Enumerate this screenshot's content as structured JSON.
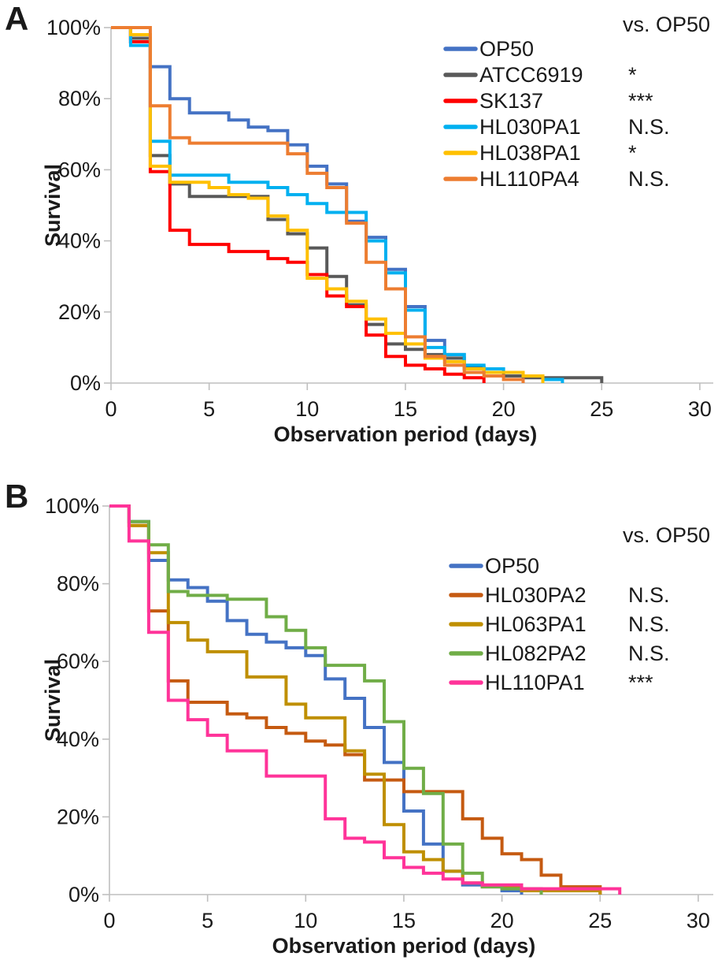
{
  "chart_data": [
    {
      "type": "line",
      "subtype": "step-survival",
      "panel_label": "A",
      "xlabel": "Observation period (days)",
      "ylabel": "Survival",
      "xlim": [
        0,
        30
      ],
      "ylim": [
        0,
        100
      ],
      "x_ticks": [
        0,
        5,
        10,
        15,
        20,
        25,
        30
      ],
      "y_ticks": [
        0,
        20,
        40,
        60,
        80,
        100
      ],
      "y_tick_labels": [
        "0%",
        "20%",
        "40%",
        "60%",
        "80%",
        "100%"
      ],
      "units": "percent",
      "grid": false,
      "legend_position": "top-right-inside",
      "legend_header": "vs. OP50",
      "series": [
        {
          "name": "OP50",
          "color": "#4472C4",
          "significance_vs_op50": "",
          "points_day_percent": [
            [
              0,
              100
            ],
            [
              1,
              96
            ],
            [
              2,
              89
            ],
            [
              3,
              80
            ],
            [
              4,
              76
            ],
            [
              6,
              74
            ],
            [
              7,
              72
            ],
            [
              8,
              71
            ],
            [
              9,
              67
            ],
            [
              10,
              61
            ],
            [
              11,
              56
            ],
            [
              12,
              45.5
            ],
            [
              13,
              41
            ],
            [
              14,
              32
            ],
            [
              15,
              21.5
            ],
            [
              16,
              12
            ],
            [
              17,
              8
            ],
            [
              18,
              4
            ],
            [
              19,
              3
            ],
            [
              21,
              2
            ],
            [
              22,
              0
            ]
          ]
        },
        {
          "name": "ATCC6919",
          "color": "#595959",
          "significance_vs_op50": "*",
          "points_day_percent": [
            [
              0,
              100
            ],
            [
              1,
              97
            ],
            [
              2,
              64
            ],
            [
              3,
              56
            ],
            [
              4,
              52.5
            ],
            [
              8,
              46
            ],
            [
              9,
              42
            ],
            [
              10,
              38
            ],
            [
              11,
              30
            ],
            [
              12,
              22
            ],
            [
              13,
              16.5
            ],
            [
              14,
              11
            ],
            [
              15,
              9.5
            ],
            [
              16,
              8
            ],
            [
              17,
              7
            ],
            [
              18,
              4.5
            ],
            [
              19,
              3
            ],
            [
              20,
              2
            ],
            [
              21,
              1.5
            ],
            [
              25,
              0
            ]
          ]
        },
        {
          "name": "SK137",
          "color": "#FF0000",
          "significance_vs_op50": "***",
          "points_day_percent": [
            [
              0,
              100
            ],
            [
              1,
              96
            ],
            [
              2,
              59.5
            ],
            [
              3,
              43
            ],
            [
              4,
              39
            ],
            [
              6,
              37
            ],
            [
              8,
              35
            ],
            [
              9,
              34
            ],
            [
              10,
              30.5
            ],
            [
              11,
              24.5
            ],
            [
              12,
              21.5
            ],
            [
              13,
              13.5
            ],
            [
              14,
              7.5
            ],
            [
              15,
              5
            ],
            [
              16,
              4
            ],
            [
              17,
              2.5
            ],
            [
              18,
              1.5
            ],
            [
              19,
              0
            ]
          ]
        },
        {
          "name": "HL030PA1",
          "color": "#00B0F0",
          "significance_vs_op50": "N.S.",
          "points_day_percent": [
            [
              0,
              100
            ],
            [
              1,
              95
            ],
            [
              2,
              68
            ],
            [
              3,
              58.5
            ],
            [
              6,
              56.5
            ],
            [
              8,
              55
            ],
            [
              9,
              53
            ],
            [
              10,
              50.5
            ],
            [
              11,
              48
            ],
            [
              13,
              40
            ],
            [
              14,
              31
            ],
            [
              15,
              20.5
            ],
            [
              16,
              10
            ],
            [
              17,
              8
            ],
            [
              18,
              5
            ],
            [
              19,
              4
            ],
            [
              20,
              3
            ],
            [
              21,
              2
            ],
            [
              22,
              1
            ],
            [
              23,
              0
            ]
          ]
        },
        {
          "name": "HL038PA1",
          "color": "#FFC000",
          "significance_vs_op50": "*",
          "points_day_percent": [
            [
              0,
              100
            ],
            [
              1,
              98
            ],
            [
              2,
              61
            ],
            [
              3,
              56.5
            ],
            [
              5,
              55
            ],
            [
              6,
              53
            ],
            [
              7,
              52
            ],
            [
              8,
              47
            ],
            [
              9,
              43
            ],
            [
              10,
              29.5
            ],
            [
              11,
              26.5
            ],
            [
              12,
              23
            ],
            [
              13,
              18
            ],
            [
              14,
              14
            ],
            [
              15,
              11
            ],
            [
              16,
              7
            ],
            [
              17,
              6
            ],
            [
              18,
              4
            ],
            [
              19,
              3
            ],
            [
              21,
              2
            ],
            [
              22,
              0
            ]
          ]
        },
        {
          "name": "HL110PA4",
          "color": "#ED7D31",
          "significance_vs_op50": "N.S.",
          "points_day_percent": [
            [
              0,
              100
            ],
            [
              2,
              78
            ],
            [
              3,
              69
            ],
            [
              4,
              67.5
            ],
            [
              9,
              64.5
            ],
            [
              10,
              59
            ],
            [
              11,
              55
            ],
            [
              12,
              45
            ],
            [
              13,
              34
            ],
            [
              14,
              26.5
            ],
            [
              15,
              13
            ],
            [
              16,
              7.5
            ],
            [
              17,
              5
            ],
            [
              18,
              3
            ],
            [
              19,
              2
            ],
            [
              20,
              1
            ],
            [
              21,
              0
            ]
          ]
        }
      ]
    },
    {
      "type": "line",
      "subtype": "step-survival",
      "panel_label": "B",
      "xlabel": "Observation period (days)",
      "ylabel": "Survival",
      "xlim": [
        0,
        30
      ],
      "ylim": [
        0,
        100
      ],
      "x_ticks": [
        0,
        5,
        10,
        15,
        20,
        25,
        30
      ],
      "y_ticks": [
        0,
        20,
        40,
        60,
        80,
        100
      ],
      "y_tick_labels": [
        "0%",
        "20%",
        "40%",
        "60%",
        "80%",
        "100%"
      ],
      "units": "percent",
      "grid": false,
      "legend_position": "top-right-inside",
      "legend_header": "vs. OP50",
      "series": [
        {
          "name": "OP50",
          "color": "#4472C4",
          "significance_vs_op50": "",
          "points_day_percent": [
            [
              0,
              100
            ],
            [
              1,
              96
            ],
            [
              2,
              86
            ],
            [
              3,
              81
            ],
            [
              4,
              79
            ],
            [
              5,
              75.5
            ],
            [
              6,
              70.5
            ],
            [
              7,
              67
            ],
            [
              8,
              65
            ],
            [
              9,
              63.5
            ],
            [
              10,
              61.5
            ],
            [
              11,
              55.5
            ],
            [
              12,
              50.5
            ],
            [
              13,
              43
            ],
            [
              14,
              34
            ],
            [
              15,
              21.5
            ],
            [
              16,
              13
            ],
            [
              17,
              6
            ],
            [
              18,
              2.5
            ],
            [
              19,
              2
            ],
            [
              20,
              1
            ],
            [
              21,
              0
            ]
          ]
        },
        {
          "name": "HL030PA2",
          "color": "#C55A11",
          "significance_vs_op50": "N.S.",
          "points_day_percent": [
            [
              0,
              100
            ],
            [
              1,
              95
            ],
            [
              2,
              73
            ],
            [
              3,
              55
            ],
            [
              4,
              49.5
            ],
            [
              6,
              46.5
            ],
            [
              7,
              45.5
            ],
            [
              8,
              43
            ],
            [
              9,
              41.5
            ],
            [
              10,
              39.5
            ],
            [
              11,
              38.5
            ],
            [
              12,
              36
            ],
            [
              13,
              29.5
            ],
            [
              15,
              26.5
            ],
            [
              18,
              19.5
            ],
            [
              19,
              14.5
            ],
            [
              20,
              10.5
            ],
            [
              21,
              9
            ],
            [
              22,
              5
            ],
            [
              23,
              2
            ],
            [
              25,
              0
            ]
          ]
        },
        {
          "name": "HL063PA1",
          "color": "#BF8F00",
          "significance_vs_op50": "N.S.",
          "points_day_percent": [
            [
              0,
              100
            ],
            [
              1,
              95
            ],
            [
              2,
              88
            ],
            [
              3,
              70
            ],
            [
              4,
              65.5
            ],
            [
              5,
              62.5
            ],
            [
              7,
              56
            ],
            [
              9,
              49
            ],
            [
              10,
              45.5
            ],
            [
              12,
              37
            ],
            [
              13,
              31
            ],
            [
              14,
              18
            ],
            [
              15,
              11
            ],
            [
              16,
              9
            ],
            [
              17,
              6
            ],
            [
              18,
              3
            ],
            [
              19,
              2
            ],
            [
              21,
              1
            ],
            [
              25,
              0
            ]
          ]
        },
        {
          "name": "HL082PA2",
          "color": "#70AD47",
          "significance_vs_op50": "N.S.",
          "points_day_percent": [
            [
              0,
              100
            ],
            [
              1,
              96
            ],
            [
              2,
              90
            ],
            [
              3,
              78
            ],
            [
              4,
              77
            ],
            [
              6,
              76
            ],
            [
              8,
              71.5
            ],
            [
              9,
              68
            ],
            [
              10,
              63.5
            ],
            [
              11,
              59
            ],
            [
              13,
              55
            ],
            [
              14,
              44.5
            ],
            [
              15,
              32.5
            ],
            [
              16,
              26
            ],
            [
              17,
              13
            ],
            [
              18,
              5.5
            ],
            [
              19,
              2
            ],
            [
              20,
              1.5
            ],
            [
              22,
              0
            ]
          ]
        },
        {
          "name": "HL110PA1",
          "color": "#FF3399",
          "significance_vs_op50": "***",
          "points_day_percent": [
            [
              0,
              100
            ],
            [
              1,
              91
            ],
            [
              2,
              67.5
            ],
            [
              3,
              50
            ],
            [
              4,
              45
            ],
            [
              5,
              41
            ],
            [
              6,
              37
            ],
            [
              8,
              30.5
            ],
            [
              11,
              19.5
            ],
            [
              12,
              14.5
            ],
            [
              13,
              13.5
            ],
            [
              14,
              9.5
            ],
            [
              15,
              7
            ],
            [
              16,
              5.5
            ],
            [
              17,
              4
            ],
            [
              18,
              3
            ],
            [
              19,
              2.5
            ],
            [
              21,
              1.5
            ],
            [
              26,
              0
            ]
          ]
        }
      ]
    }
  ],
  "style": {
    "axis_color": "#BFBFBF",
    "text_color": "#1a1a1a",
    "line_width": 4
  }
}
